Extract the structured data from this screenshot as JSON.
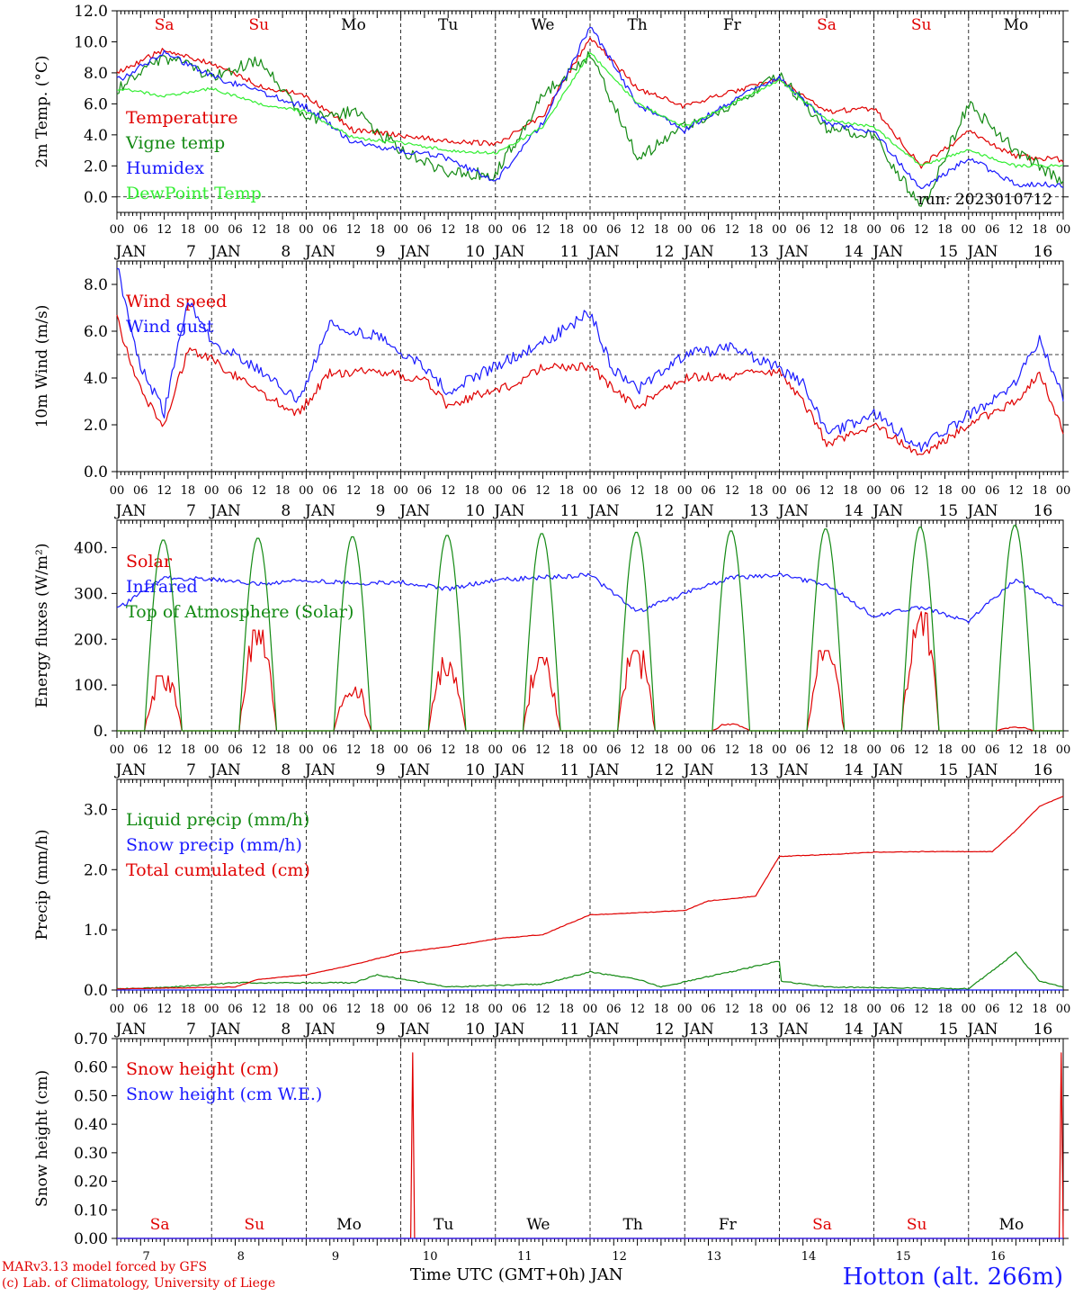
{
  "colors": {
    "red": "#e00000",
    "green": "#138a13",
    "blue": "#1a1aff",
    "lightgreen": "#33ee33",
    "black": "#000000"
  },
  "days": [
    7,
    8,
    9,
    10,
    11,
    12,
    13,
    14,
    15,
    16
  ],
  "month": "JAN",
  "weekdays": [
    "Sa",
    "Su",
    "Mo",
    "Tu",
    "We",
    "Th",
    "Fr",
    "Sa",
    "Su",
    "Mo"
  ],
  "weekend_flags": [
    true,
    true,
    false,
    false,
    false,
    false,
    false,
    true,
    true,
    false
  ],
  "hour_labels": [
    "00",
    "06",
    "12",
    "18"
  ],
  "run_label": "run: 2023010712",
  "footer": {
    "model": "MARv3.13 model forced by GFS",
    "lab": "(c) Lab. of Climatology, University of Liege",
    "xtitle": "Time UTC (GMT+0h) JAN",
    "station": "Hotton (alt. 266m)"
  },
  "chart_data": [
    {
      "type": "line",
      "ylabel": "2m Temp. (°C)",
      "ylim": [
        -1.0,
        12.0
      ],
      "yticks": [
        "0.0",
        "2.0",
        "4.0",
        "6.0",
        "8.0",
        "10.0",
        "12.0"
      ],
      "reference_line": 0.0,
      "x_unit": "hours since Jan 7 00 UTC",
      "series": [
        {
          "name": "Temperature",
          "color": "red",
          "x": [
            0,
            12,
            24,
            36,
            48,
            60,
            72,
            84,
            96,
            108,
            120,
            132,
            144,
            156,
            168,
            180,
            192,
            204,
            216,
            228,
            240
          ],
          "values": [
            8.0,
            9.5,
            8.6,
            7.2,
            6.5,
            4.3,
            4.0,
            3.6,
            3.4,
            5.2,
            10.3,
            7.0,
            5.8,
            6.8,
            7.6,
            5.5,
            5.7,
            2.0,
            4.2,
            2.6,
            2.4
          ]
        },
        {
          "name": "Vigne temp",
          "color": "green",
          "x": [
            0,
            12,
            24,
            36,
            48,
            60,
            72,
            84,
            96,
            108,
            120,
            132,
            144,
            156,
            168,
            180,
            192,
            204,
            216,
            228,
            240
          ],
          "values": [
            7.0,
            9.0,
            7.8,
            8.8,
            5.0,
            5.5,
            3.0,
            1.5,
            1.5,
            6.5,
            9.2,
            2.5,
            4.5,
            6.0,
            7.8,
            4.5,
            4.0,
            -0.8,
            6.0,
            3.0,
            1.0
          ]
        },
        {
          "name": "Humidex",
          "color": "blue",
          "x": [
            0,
            12,
            24,
            36,
            48,
            60,
            72,
            84,
            96,
            108,
            120,
            132,
            144,
            156,
            168,
            180,
            192,
            204,
            216,
            228,
            240
          ],
          "values": [
            7.5,
            9.3,
            7.8,
            6.8,
            5.8,
            3.5,
            3.0,
            2.5,
            1.0,
            4.8,
            11.0,
            6.0,
            4.3,
            6.2,
            7.7,
            4.8,
            4.2,
            0.5,
            2.5,
            0.8,
            0.8
          ]
        },
        {
          "name": "DewPoint Temp",
          "color": "lightgreen",
          "x": [
            0,
            12,
            24,
            36,
            48,
            60,
            72,
            84,
            96,
            108,
            120,
            132,
            144,
            156,
            168,
            180,
            192,
            204,
            216,
            228,
            240
          ],
          "values": [
            7.0,
            6.5,
            7.0,
            6.0,
            5.5,
            3.8,
            3.5,
            3.0,
            2.8,
            4.5,
            9.3,
            6.0,
            4.5,
            6.0,
            7.5,
            5.0,
            4.5,
            2.0,
            3.0,
            2.0,
            2.0
          ]
        }
      ]
    },
    {
      "type": "line",
      "ylabel": "10m Wind (m/s)",
      "ylim": [
        0.0,
        9.0
      ],
      "yticks": [
        "0.0",
        "2.0",
        "4.0",
        "6.0",
        "8.0"
      ],
      "reference_line": 5.0,
      "x_unit": "hours since Jan 7 00 UTC",
      "series": [
        {
          "name": "Wind speed",
          "color": "red",
          "x": [
            0,
            6,
            12,
            18,
            24,
            36,
            46,
            54,
            66,
            78,
            84,
            90,
            102,
            108,
            120,
            126,
            132,
            144,
            156,
            168,
            174,
            180,
            192,
            204,
            216,
            228,
            234,
            240
          ],
          "values": [
            6.5,
            3.5,
            1.9,
            5.2,
            4.8,
            3.4,
            2.5,
            4.2,
            4.3,
            3.9,
            2.8,
            3.2,
            3.8,
            4.5,
            4.5,
            3.5,
            2.8,
            4.0,
            4.1,
            4.3,
            3.0,
            1.2,
            2.0,
            0.7,
            2.0,
            3.0,
            4.2,
            1.8
          ]
        },
        {
          "name": "Wind gust",
          "color": "blue",
          "x": [
            0,
            6,
            12,
            18,
            24,
            36,
            46,
            54,
            66,
            78,
            84,
            90,
            102,
            108,
            120,
            126,
            132,
            144,
            156,
            168,
            174,
            180,
            192,
            204,
            216,
            228,
            234,
            240
          ],
          "values": [
            8.8,
            4.5,
            2.5,
            7.3,
            5.6,
            4.3,
            3.0,
            6.3,
            5.8,
            4.5,
            3.4,
            4.0,
            5.0,
            5.5,
            6.8,
            4.3,
            3.5,
            5.0,
            5.3,
            4.4,
            3.8,
            1.6,
            2.5,
            1.0,
            2.4,
            3.8,
            5.6,
            3.2
          ]
        }
      ]
    },
    {
      "type": "line",
      "ylabel": "Energy fluxes (W/m²)",
      "ylim": [
        0,
        460
      ],
      "yticks": [
        "0.",
        "100.",
        "200.",
        "300.",
        "400."
      ],
      "x_unit": "hours since Jan 7 00 UTC",
      "series": [
        {
          "name": "Solar",
          "color": "red",
          "peaks": [
            120,
            220,
            105,
            160,
            160,
            175,
            15,
            175,
            260,
            8
          ]
        },
        {
          "name": "Infrared",
          "color": "blue",
          "x": [
            0,
            12,
            24,
            36,
            48,
            60,
            72,
            84,
            96,
            108,
            120,
            132,
            144,
            156,
            168,
            180,
            192,
            204,
            216,
            228,
            240
          ],
          "values": [
            265,
            335,
            330,
            320,
            330,
            322,
            325,
            310,
            330,
            335,
            340,
            260,
            300,
            335,
            340,
            320,
            250,
            270,
            240,
            330,
            270
          ]
        },
        {
          "name": "Top of Atmosphere (Solar)",
          "color": "green",
          "peaks": [
            418,
            422,
            425,
            428,
            432,
            435,
            438,
            442,
            446,
            450
          ]
        }
      ]
    },
    {
      "type": "line",
      "ylabel": "Precip (mm/h)",
      "ylim": [
        0.0,
        3.5
      ],
      "yticks": [
        "0.0",
        "1.0",
        "2.0",
        "3.0"
      ],
      "x_unit": "hours since Jan 7 00 UTC",
      "series": [
        {
          "name": "Liquid precip (mm/h)",
          "color": "green",
          "x": [
            0,
            12,
            30,
            60,
            66,
            84,
            108,
            120,
            132,
            138,
            168,
            156,
            180,
            216,
            228,
            234,
            240
          ],
          "values": [
            0.02,
            0.04,
            0.12,
            0.12,
            0.25,
            0.05,
            0.1,
            0.3,
            0.18,
            0.05,
            0.48,
            0.25,
            0.05,
            0.02,
            0.62,
            0.15,
            0.05
          ]
        },
        {
          "name": "Snow precip (mm/h)",
          "color": "blue",
          "x": [
            0,
            240
          ],
          "values": [
            0.0,
            0.0
          ]
        },
        {
          "name": "Total cumulated (cm)",
          "color": "red",
          "x": [
            0,
            30,
            36,
            48,
            60,
            72,
            84,
            96,
            108,
            120,
            144,
            150,
            156,
            162,
            168,
            180,
            192,
            204,
            216,
            222,
            228,
            234,
            240
          ],
          "values": [
            0.02,
            0.05,
            0.18,
            0.25,
            0.42,
            0.62,
            0.72,
            0.85,
            0.92,
            1.25,
            1.32,
            1.48,
            1.52,
            1.56,
            2.22,
            2.25,
            2.29,
            2.3,
            2.3,
            2.3,
            2.65,
            3.05,
            3.22
          ]
        }
      ]
    },
    {
      "type": "line",
      "ylabel": "Snow height (cm)",
      "ylim": [
        0.0,
        0.7
      ],
      "yticks": [
        "0.00",
        "0.10",
        "0.20",
        "0.30",
        "0.40",
        "0.50",
        "0.60",
        "0.70"
      ],
      "x_unit": "hours since Jan 7 00 UTC",
      "series": [
        {
          "name": "Snow height (cm)",
          "color": "red",
          "x": [
            0,
            74.5,
            75,
            75.5,
            239,
            239.5,
            240
          ],
          "values": [
            0.0,
            0.0,
            0.65,
            0.0,
            0.0,
            0.65,
            0.0
          ]
        },
        {
          "name": "Snow height (cm W.E.)",
          "color": "blue",
          "x": [
            0,
            240
          ],
          "values": [
            0.0,
            0.0
          ]
        }
      ]
    }
  ]
}
